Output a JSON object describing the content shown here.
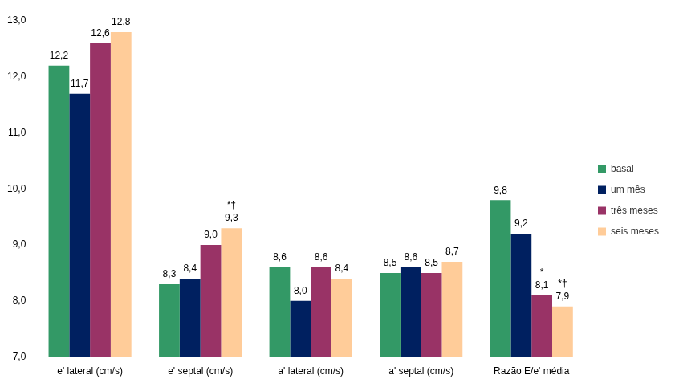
{
  "chart_data": {
    "type": "bar",
    "categories": [
      "e' lateral (cm/s)",
      "e' septal (cm/s)",
      "a' lateral (cm/s)",
      "a' septal (cm/s)",
      "Razão E/e' média"
    ],
    "series": [
      {
        "name": "basal",
        "color": "#339966",
        "values": [
          12.2,
          8.3,
          8.6,
          8.5,
          9.8
        ],
        "value_labels": [
          "12,2",
          "8,3",
          "8,6",
          "8,5",
          "9,8"
        ]
      },
      {
        "name": "um mês",
        "color": "#002060",
        "values": [
          11.7,
          8.4,
          8.0,
          8.6,
          9.2
        ],
        "value_labels": [
          "11,7",
          "8,4",
          "8,0",
          "8,6",
          "9,2"
        ]
      },
      {
        "name": "três meses",
        "color": "#993366",
        "values": [
          12.6,
          9.0,
          8.6,
          8.5,
          8.1
        ],
        "value_labels": [
          "12,6",
          "9,0",
          "8,6",
          "8,5",
          "8,1"
        ]
      },
      {
        "name": "seis meses",
        "color": "#FFCC99",
        "values": [
          12.8,
          9.3,
          8.4,
          8.7,
          7.9
        ],
        "value_labels": [
          "12,8",
          "9,3",
          "8,4",
          "8,7",
          "7,9"
        ]
      }
    ],
    "annotations": [
      {
        "series": "seis meses",
        "category": "e' septal (cm/s)",
        "text": "*†"
      },
      {
        "series": "três meses",
        "category": "Razão E/e' média",
        "text": "*"
      },
      {
        "series": "seis meses",
        "category": "Razão E/e' média",
        "text": "*†"
      }
    ],
    "ylim": [
      7,
      13
    ],
    "yticks": [
      {
        "value": 7,
        "label": "7,0"
      },
      {
        "value": 8,
        "label": "8,0"
      },
      {
        "value": 9,
        "label": "9,0"
      },
      {
        "value": 10,
        "label": "10,0"
      },
      {
        "value": 11,
        "label": "11,0"
      },
      {
        "value": 12,
        "label": "12,0"
      },
      {
        "value": 13,
        "label": "13,0"
      }
    ],
    "grid": false,
    "legend": "right",
    "data_labels": true
  }
}
